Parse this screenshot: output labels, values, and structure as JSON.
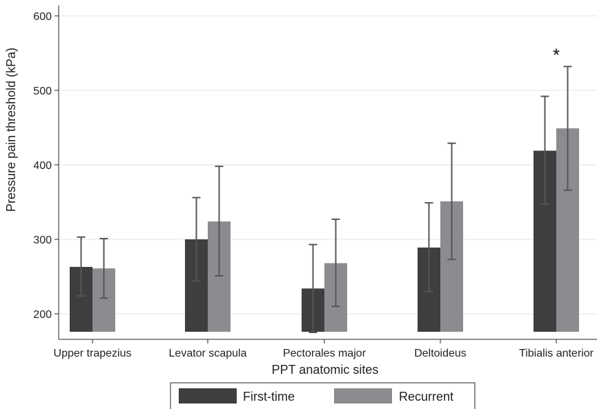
{
  "chart_data": {
    "type": "bar",
    "xlabel": "PPT anatomic sites",
    "ylabel": "Pressure pain threshold (kPa)",
    "ylim": [
      175,
      615
    ],
    "yticks": [
      200,
      300,
      400,
      500,
      600
    ],
    "grid": true,
    "legend_placement": "bottom",
    "categories": [
      "Upper trapezius",
      "Levator scapula",
      "Pectorales major",
      "Deltoideus",
      "Tibialis anterior"
    ],
    "series": [
      {
        "name": "First-time",
        "color": "#3d3e40",
        "values": [
          263,
          300,
          234,
          289,
          419
        ],
        "error_low": [
          224,
          244,
          175,
          230,
          347
        ],
        "error_high": [
          303,
          356,
          293,
          349,
          492
        ]
      },
      {
        "name": "Recurrent",
        "color": "#8b8c8f",
        "values": [
          261,
          324,
          268,
          351,
          449
        ],
        "error_low": [
          221,
          251,
          210,
          273,
          366
        ],
        "error_high": [
          301,
          398,
          327,
          429,
          532
        ]
      }
    ],
    "annotations": [
      {
        "category": "Tibialis anterior",
        "text": "*"
      }
    ]
  }
}
